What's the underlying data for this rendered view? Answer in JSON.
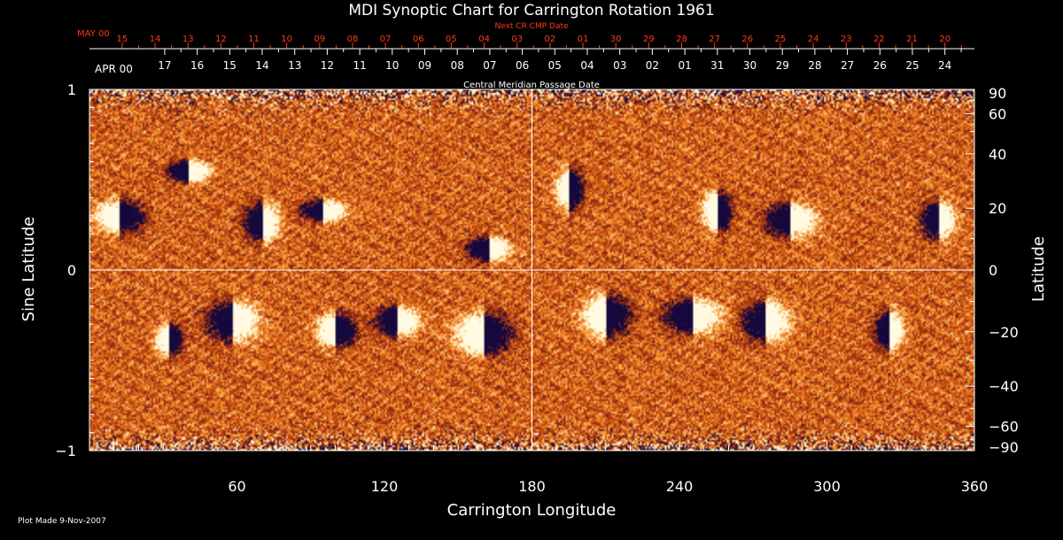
{
  "title": "MDI Synoptic Chart for Carrington Rotation 1961",
  "footer": "Plot Made  9-Nov-2007",
  "colors": {
    "background": "#000000",
    "text": "#ffffff",
    "next_cr_text": "#ff3a1a",
    "map_base": "#d9531a",
    "map_bright": "#ffe6a0",
    "map_dark": "#1b0b33"
  },
  "chart_data": {
    "type": "heatmap",
    "title": "MDI Synoptic Chart for Carrington Rotation 1961",
    "xlabel": "Carrington Longitude",
    "ylabel_left": "Sine Latitude",
    "ylabel_right": "Latitude",
    "xlim": [
      0,
      360
    ],
    "ylim": [
      -1,
      1
    ],
    "x_ticks": [
      "60",
      "120",
      "180",
      "240",
      "300",
      "360"
    ],
    "x_tick_values": [
      60,
      120,
      180,
      240,
      300,
      360
    ],
    "y_left_ticks": [
      {
        "value": 1,
        "label": "1"
      },
      {
        "value": 0,
        "label": "0"
      },
      {
        "value": -1,
        "label": "−1"
      }
    ],
    "y_right_ticks": [
      {
        "deg": 90,
        "label": "90"
      },
      {
        "deg": 60,
        "label": "60"
      },
      {
        "deg": 40,
        "label": "40"
      },
      {
        "deg": 20,
        "label": "20"
      },
      {
        "deg": 0,
        "label": "0"
      },
      {
        "deg": -20,
        "label": "−20"
      },
      {
        "deg": -40,
        "label": "−40"
      },
      {
        "deg": -60,
        "label": "−60"
      },
      {
        "deg": -90,
        "label": "−90"
      }
    ],
    "crosshair": {
      "longitude": 180,
      "sine_latitude": 0
    },
    "next_cr_axis": {
      "title": "Next CR CMP Date",
      "month_label": "MAY 00",
      "labels": [
        "15",
        "14",
        "13",
        "12",
        "11",
        "10",
        "09",
        "08",
        "07",
        "06",
        "05",
        "04",
        "03",
        "02",
        "01",
        "30",
        "29",
        "28",
        "27",
        "26",
        "25",
        "24",
        "23",
        "22",
        "21",
        "20"
      ],
      "first_longitude": 346.7,
      "last_longitude": 12.0
    },
    "current_cr_axis": {
      "title": "Central Meridian Passage Date",
      "month_label": "APR 00",
      "labels": [
        "17",
        "16",
        "15",
        "14",
        "13",
        "12",
        "11",
        "10",
        "09",
        "08",
        "07",
        "06",
        "05",
        "04",
        "03",
        "02",
        "01",
        "31",
        "30",
        "29",
        "28",
        "27",
        "26",
        "25",
        "24"
      ],
      "first_longitude": 329.4,
      "last_longitude": 12.0
    },
    "active_regions": [
      {
        "lon": 12,
        "sinlat": 0.3,
        "polarity": "mixed"
      },
      {
        "lon": 40,
        "sinlat": 0.55,
        "polarity": "mixed"
      },
      {
        "lon": 70,
        "sinlat": 0.27,
        "polarity": "mixed"
      },
      {
        "lon": 95,
        "sinlat": 0.33,
        "polarity": "mixed"
      },
      {
        "lon": 162,
        "sinlat": 0.12,
        "polarity": "mixed"
      },
      {
        "lon": 195,
        "sinlat": 0.45,
        "polarity": "mixed"
      },
      {
        "lon": 255,
        "sinlat": 0.33,
        "polarity": "mixed"
      },
      {
        "lon": 285,
        "sinlat": 0.28,
        "polarity": "mixed"
      },
      {
        "lon": 345,
        "sinlat": 0.28,
        "polarity": "mixed"
      },
      {
        "lon": 32,
        "sinlat": -0.38,
        "polarity": "mixed"
      },
      {
        "lon": 58,
        "sinlat": -0.28,
        "polarity": "mixed"
      },
      {
        "lon": 100,
        "sinlat": -0.33,
        "polarity": "mixed"
      },
      {
        "lon": 125,
        "sinlat": -0.28,
        "polarity": "mixed"
      },
      {
        "lon": 160,
        "sinlat": -0.35,
        "polarity": "mixed"
      },
      {
        "lon": 210,
        "sinlat": -0.25,
        "polarity": "mixed"
      },
      {
        "lon": 245,
        "sinlat": -0.25,
        "polarity": "mixed"
      },
      {
        "lon": 275,
        "sinlat": -0.28,
        "polarity": "mixed"
      },
      {
        "lon": 325,
        "sinlat": -0.33,
        "polarity": "mixed"
      }
    ]
  }
}
